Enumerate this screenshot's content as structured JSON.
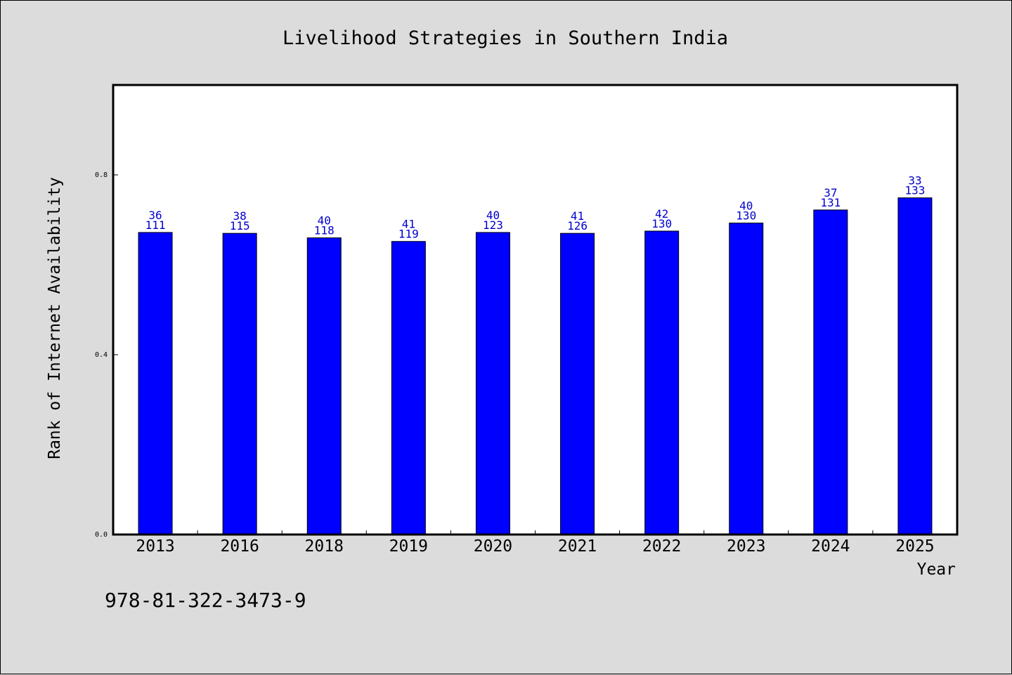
{
  "chart_data": {
    "type": "bar",
    "title": "Livelihood Strategies in Southern India",
    "xlabel": "Year",
    "ylabel": "Rank of Internet Availability",
    "categories": [
      "2013",
      "2016",
      "2018",
      "2019",
      "2020",
      "2021",
      "2022",
      "2023",
      "2024",
      "2025"
    ],
    "series": [
      {
        "values": [
          0.672,
          0.67,
          0.66,
          0.652,
          0.672,
          0.67,
          0.675,
          0.693,
          0.722,
          0.749
        ]
      }
    ],
    "annotations": [
      {
        "top": "36",
        "bottom": "111"
      },
      {
        "top": "38",
        "bottom": "115"
      },
      {
        "top": "40",
        "bottom": "118"
      },
      {
        "top": "41",
        "bottom": "119"
      },
      {
        "top": "40",
        "bottom": "123"
      },
      {
        "top": "41",
        "bottom": "126"
      },
      {
        "top": "42",
        "bottom": "130"
      },
      {
        "top": "40",
        "bottom": "130"
      },
      {
        "top": "37",
        "bottom": "131"
      },
      {
        "top": "33",
        "bottom": "133"
      }
    ],
    "ylim": [
      0,
      1.0
    ],
    "yticks": [
      "0.0",
      "0.4",
      "0.8"
    ],
    "bar_color": "#0000ff",
    "label_color": "#0000cc",
    "grid": false
  },
  "footnote": "978-81-322-3473-9"
}
